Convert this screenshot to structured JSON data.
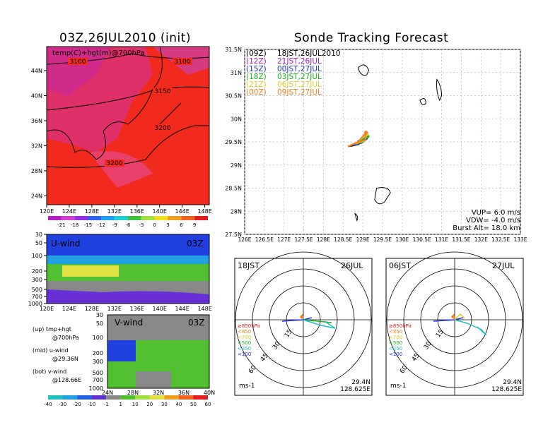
{
  "left": {
    "title": "03Z,26JUL2010 (init)",
    "map": {
      "overlay_label": "temp(C)+hgt(m)@700hPa",
      "contour_labels": [
        "3100",
        "3100",
        "3150",
        "3200",
        "3200"
      ],
      "lat_ticks": [
        "44N",
        "40N",
        "36N",
        "32N",
        "28N",
        "24N"
      ],
      "lon_ticks": [
        "120E",
        "124E",
        "128E",
        "132E",
        "136E",
        "140E",
        "144E",
        "148E"
      ],
      "colorbar_labels": [
        "-21",
        "-18",
        "-15",
        "-12",
        "-9",
        "-6",
        "-3",
        "0",
        "3",
        "6",
        "9"
      ]
    },
    "uwind": {
      "label": "U-wind",
      "time": "03Z",
      "lev_ticks": [
        "30",
        "50",
        "100",
        "200",
        "300",
        "500",
        "700",
        "1000"
      ],
      "lon_ticks": [
        "120E",
        "124E",
        "128E",
        "132E",
        "136E",
        "140E",
        "144E",
        "148E"
      ]
    },
    "vwind": {
      "label": "V-wind",
      "time": "03Z",
      "lev_ticks": [
        "30",
        "50",
        "100",
        "200",
        "300",
        "500",
        "700",
        "1000"
      ],
      "lat_ticks": [
        "24N",
        "28N",
        "32N",
        "36N",
        "40N"
      ]
    },
    "notes": {
      "up1": "(up) tmp+hgt",
      "up2": "@700hPa",
      "mid1": "(mid) u-wind",
      "mid2": "@29.36N",
      "bot1": "(bot) v-wind",
      "bot2": "@128.66E"
    },
    "wind_colorbar_labels": [
      "-40",
      "-30",
      "-20",
      "-10",
      "-1",
      "1",
      "10",
      "20",
      "30",
      "40",
      "50",
      "60"
    ]
  },
  "right": {
    "title": "Sonde Tracking Forecast",
    "legend": [
      {
        "utc": "(09Z)",
        "jst": "18JST,26JUL2010",
        "color": "#000000"
      },
      {
        "utc": "(12Z)",
        "jst": "21JST,26JUL",
        "color": "#a020c0"
      },
      {
        "utc": "(15Z)",
        "jst": "00JST,27JUL",
        "color": "#2030e0"
      },
      {
        "utc": "(18Z)",
        "jst": "03JST,27JUL",
        "color": "#20b020"
      },
      {
        "utc": "(21Z)",
        "jst": "06JST,27JUL",
        "color": "#e0d020"
      },
      {
        "utc": "(00Z)",
        "jst": "09JST,27JUL",
        "color": "#f08020"
      }
    ],
    "lat_ticks": [
      "31.5N",
      "31N",
      "30.5N",
      "30N",
      "29.5N",
      "29N",
      "28.5N",
      "28N",
      "27.5N"
    ],
    "lon_ticks": [
      "126E",
      "126.5E",
      "127E",
      "127.5E",
      "128E",
      "128.5E",
      "129E",
      "129.5E",
      "130E",
      "130.5E",
      "131E",
      "131.5E",
      "132E",
      "132.5E",
      "133E"
    ],
    "params": {
      "vup": "VUP=  6.0  m/s",
      "vdw": "VDW= -4.0  m/s",
      "burst": "Burst Alt= 18.0  km"
    },
    "hodographs": [
      {
        "time": "18JST",
        "date": "26JUL",
        "ring_labels": [
          "15",
          "30",
          "45",
          "60"
        ],
        "level_legend": [
          "≥850hPa",
          "<850",
          "<700",
          "<500",
          "<250",
          "<100"
        ],
        "units": "ms-1",
        "lat": "29.4N",
        "lon": "128.625E"
      },
      {
        "time": "06JST",
        "date": "27JUL",
        "ring_labels": [
          "15",
          "30",
          "45",
          "60"
        ],
        "level_legend": [
          "≥850hPa",
          "<850",
          "<700",
          "<500",
          "<250",
          "<100"
        ],
        "units": "ms-1",
        "lat": "29.4N",
        "lon": "128.625E"
      }
    ]
  },
  "colors": {
    "level_legend": [
      "#e02020",
      "#f08020",
      "#e0d020",
      "#20b020",
      "#20c0c0",
      "#2030e0"
    ]
  },
  "chart_data": [
    {
      "type": "heatmap",
      "title": "03Z,26JUL2010 (init)",
      "annotation": "temp(C)+hgt(m)@700hPa",
      "x_range": [
        "120E",
        "148E"
      ],
      "y_range": [
        "23N",
        "47N"
      ],
      "colorbar": [
        -21,
        -18,
        -15,
        -12,
        -9,
        -6,
        -3,
        0,
        3,
        6,
        9
      ],
      "contours": [
        3100,
        3150,
        3200
      ]
    },
    {
      "type": "heatmap",
      "title": "U-wind 03Z",
      "x_range": [
        "120E",
        "148E"
      ],
      "y_range_hPa": [
        1000,
        30
      ]
    },
    {
      "type": "heatmap",
      "title": "V-wind 03Z",
      "x_range": [
        "24N",
        "40N"
      ],
      "y_range_hPa": [
        1000,
        30
      ],
      "colorbar": [
        -40,
        -30,
        -20,
        -10,
        -1,
        1,
        10,
        20,
        30,
        40,
        50,
        60
      ]
    },
    {
      "type": "line",
      "title": "Sonde Tracking Forecast",
      "xlim": [
        126,
        133
      ],
      "ylim": [
        27.5,
        31.5
      ],
      "launch": {
        "lon": 128.625,
        "lat": 29.4
      },
      "series": [
        {
          "name": "(09Z) 18JST,26JUL2010",
          "x": [
            128.625,
            128.75,
            128.9,
            129.0,
            128.9,
            128.75,
            128.625
          ],
          "y": [
            29.4,
            29.45,
            29.5,
            29.55,
            29.45,
            29.42,
            29.4
          ]
        },
        {
          "name": "(12Z) 21JST,26JUL",
          "x": [
            128.625,
            128.8,
            129.05,
            128.95,
            128.75
          ],
          "y": [
            29.4,
            29.46,
            29.56,
            29.47,
            29.43
          ]
        },
        {
          "name": "(15Z) 00JST,27JUL",
          "x": [
            128.625,
            128.82,
            129.08,
            128.98,
            128.78
          ],
          "y": [
            29.4,
            29.47,
            29.58,
            29.48,
            29.44
          ]
        },
        {
          "name": "(18Z) 03JST,27JUL",
          "x": [
            128.625,
            128.85,
            129.12,
            129.02,
            128.8
          ],
          "y": [
            29.4,
            29.48,
            29.62,
            29.5,
            29.45
          ]
        },
        {
          "name": "(21Z) 06JST,27JUL",
          "x": [
            128.625,
            128.86,
            129.1,
            129.04,
            128.82
          ],
          "y": [
            29.4,
            29.49,
            29.66,
            29.52,
            29.46
          ]
        },
        {
          "name": "(00Z) 09JST,27JUL",
          "x": [
            128.625,
            128.88,
            129.08,
            129.05,
            128.84
          ],
          "y": [
            29.4,
            29.5,
            29.7,
            29.54,
            29.47
          ]
        }
      ]
    }
  ]
}
